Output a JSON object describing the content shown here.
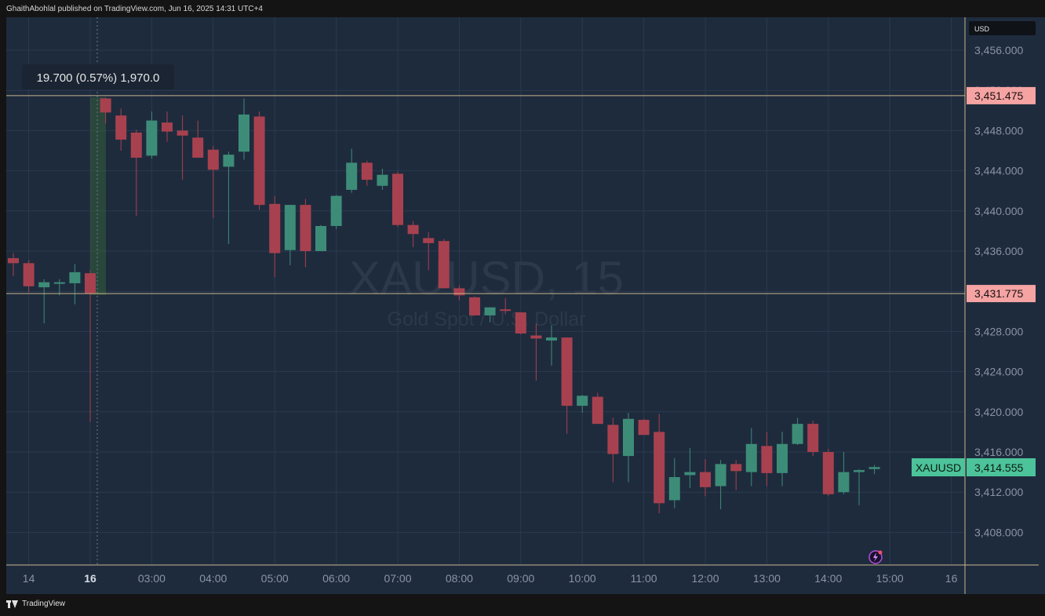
{
  "header": {
    "published_by": "GhaithAbohlal published on TradingView.com, Jun 16, 2025 14:31 UTC+4"
  },
  "footer": {
    "brand": "TradingView"
  },
  "colors": {
    "background": "#1e2b3d",
    "up": "#3d8c78",
    "down": "#a8414f",
    "grid": "#2a3a4f",
    "axis_text": "#8a94a3",
    "level_line": "#c8b38a",
    "level_label_bg": "#f5a3a3",
    "last_price_bg": "#4cc39a"
  },
  "watermark": {
    "symbol": "XAUUSD, 15",
    "description": "Gold Spot / U.S. Dollar"
  },
  "price_axis": {
    "currency": "USD"
  },
  "measure": {
    "label": "19.700 (0.57%) 1,970.0"
  },
  "levels": [
    {
      "price": "3,451.475",
      "value": 3451.475
    },
    {
      "price": "3,431.775",
      "value": 3431.775
    }
  ],
  "last_price": {
    "symbol": "XAUUSD",
    "price": "3,414.555",
    "value": 3414.555
  },
  "icons": {
    "alert": "lightning-alert-icon"
  },
  "chart_data": {
    "type": "candlestick",
    "symbol": "XAUUSD",
    "interval": "15",
    "x_start_index": -6,
    "ylim": [
      3405,
      3458
    ],
    "y_ticks": [
      3408,
      3412,
      3416,
      3420,
      3424,
      3428,
      3432,
      3436,
      3440,
      3444,
      3448,
      3452,
      3456
    ],
    "y_tick_labels": [
      "3,408.000",
      "3,412.000",
      "3,416.000",
      "3,420.000",
      "3,424.000",
      "3,428.000",
      "3,432.000",
      "3,436.000",
      "3,440.000",
      "3,444.000",
      "3,448.000",
      "3,452.000",
      "3,456.000"
    ],
    "x_ticks": [
      {
        "label": "14",
        "index": -5,
        "bold": false
      },
      {
        "label": "16",
        "index": -1,
        "bold": true
      },
      {
        "label": "03:00",
        "index": 3,
        "bold": false
      },
      {
        "label": "04:00",
        "index": 7,
        "bold": false
      },
      {
        "label": "05:00",
        "index": 11,
        "bold": false
      },
      {
        "label": "06:00",
        "index": 15,
        "bold": false
      },
      {
        "label": "07:00",
        "index": 19,
        "bold": false
      },
      {
        "label": "08:00",
        "index": 23,
        "bold": false
      },
      {
        "label": "09:00",
        "index": 27,
        "bold": false
      },
      {
        "label": "10:00",
        "index": 31,
        "bold": false
      },
      {
        "label": "11:00",
        "index": 35,
        "bold": false
      },
      {
        "label": "12:00",
        "index": 39,
        "bold": false
      },
      {
        "label": "13:00",
        "index": 43,
        "bold": false
      },
      {
        "label": "14:00",
        "index": 47,
        "bold": false
      },
      {
        "label": "15:00",
        "index": 51,
        "bold": false
      },
      {
        "label": "16",
        "index": 55,
        "bold": false
      }
    ],
    "candles": [
      {
        "o": 3435.3,
        "h": 3435.8,
        "l": 3433.5,
        "c": 3434.8
      },
      {
        "o": 3434.8,
        "h": 3435.1,
        "l": 3431.9,
        "c": 3432.5
      },
      {
        "o": 3432.4,
        "h": 3433.2,
        "l": 3428.8,
        "c": 3432.9
      },
      {
        "o": 3432.9,
        "h": 3433.2,
        "l": 3431.6,
        "c": 3432.9
      },
      {
        "o": 3432.8,
        "h": 3434.7,
        "l": 3430.7,
        "c": 3433.9
      },
      {
        "o": 3433.8,
        "h": 3434.1,
        "l": 3419.0,
        "c": 3431.8
      },
      {
        "o": 3451.2,
        "h": 3451.3,
        "l": 3448.7,
        "c": 3449.8
      },
      {
        "o": 3449.5,
        "h": 3450.2,
        "l": 3446.0,
        "c": 3447.1
      },
      {
        "o": 3447.8,
        "h": 3448.1,
        "l": 3439.5,
        "c": 3445.3
      },
      {
        "o": 3445.5,
        "h": 3449.9,
        "l": 3445.2,
        "c": 3449.0
      },
      {
        "o": 3448.8,
        "h": 3449.9,
        "l": 3446.9,
        "c": 3447.9
      },
      {
        "o": 3448.0,
        "h": 3449.5,
        "l": 3443.1,
        "c": 3447.5
      },
      {
        "o": 3447.3,
        "h": 3449.0,
        "l": 3445.3,
        "c": 3445.3
      },
      {
        "o": 3446.1,
        "h": 3446.5,
        "l": 3439.3,
        "c": 3444.1
      },
      {
        "o": 3444.4,
        "h": 3445.9,
        "l": 3436.7,
        "c": 3445.6
      },
      {
        "o": 3445.9,
        "h": 3451.2,
        "l": 3445.1,
        "c": 3449.6
      },
      {
        "o": 3449.4,
        "h": 3449.9,
        "l": 3440.1,
        "c": 3440.6
      },
      {
        "o": 3440.7,
        "h": 3441.5,
        "l": 3433.4,
        "c": 3435.8
      },
      {
        "o": 3436.1,
        "h": 3440.2,
        "l": 3434.6,
        "c": 3440.6
      },
      {
        "o": 3440.6,
        "h": 3441.2,
        "l": 3434.4,
        "c": 3436.0
      },
      {
        "o": 3436.0,
        "h": 3438.6,
        "l": 3436.0,
        "c": 3438.5
      },
      {
        "o": 3438.5,
        "h": 3441.6,
        "l": 3438.2,
        "c": 3441.5
      },
      {
        "o": 3442.1,
        "h": 3446.2,
        "l": 3441.8,
        "c": 3444.8
      },
      {
        "o": 3444.8,
        "h": 3445.0,
        "l": 3442.5,
        "c": 3443.1
      },
      {
        "o": 3442.5,
        "h": 3444.2,
        "l": 3442.1,
        "c": 3443.6
      },
      {
        "o": 3443.7,
        "h": 3443.9,
        "l": 3438.4,
        "c": 3438.6
      },
      {
        "o": 3438.6,
        "h": 3439.0,
        "l": 3436.4,
        "c": 3437.7
      },
      {
        "o": 3437.3,
        "h": 3437.9,
        "l": 3434.1,
        "c": 3436.8
      },
      {
        "o": 3437.0,
        "h": 3437.2,
        "l": 3432.3,
        "c": 3432.3
      },
      {
        "o": 3432.3,
        "h": 3432.6,
        "l": 3431.1,
        "c": 3431.6
      },
      {
        "o": 3431.4,
        "h": 3431.5,
        "l": 3429.6,
        "c": 3429.6
      },
      {
        "o": 3429.6,
        "h": 3430.4,
        "l": 3428.9,
        "c": 3430.4
      },
      {
        "o": 3430.2,
        "h": 3431.3,
        "l": 3429.7,
        "c": 3430.1
      },
      {
        "o": 3429.9,
        "h": 3429.9,
        "l": 3427.7,
        "c": 3427.8
      },
      {
        "o": 3427.6,
        "h": 3428.8,
        "l": 3423.1,
        "c": 3427.3
      },
      {
        "o": 3427.1,
        "h": 3428.6,
        "l": 3424.6,
        "c": 3427.4
      },
      {
        "o": 3427.4,
        "h": 3427.4,
        "l": 3417.8,
        "c": 3420.6
      },
      {
        "o": 3420.6,
        "h": 3421.7,
        "l": 3419.9,
        "c": 3421.6
      },
      {
        "o": 3421.5,
        "h": 3421.9,
        "l": 3418.9,
        "c": 3418.8
      },
      {
        "o": 3418.7,
        "h": 3419.4,
        "l": 3413.0,
        "c": 3415.8
      },
      {
        "o": 3415.6,
        "h": 3419.9,
        "l": 3413.0,
        "c": 3419.3
      },
      {
        "o": 3419.2,
        "h": 3419.3,
        "l": 3417.7,
        "c": 3417.7
      },
      {
        "o": 3418.0,
        "h": 3419.8,
        "l": 3409.9,
        "c": 3410.9
      },
      {
        "o": 3411.2,
        "h": 3415.4,
        "l": 3410.4,
        "c": 3413.5
      },
      {
        "o": 3413.7,
        "h": 3416.4,
        "l": 3412.4,
        "c": 3414.0
      },
      {
        "o": 3414.0,
        "h": 3415.3,
        "l": 3411.6,
        "c": 3412.5
      },
      {
        "o": 3412.6,
        "h": 3415.2,
        "l": 3410.3,
        "c": 3414.8
      },
      {
        "o": 3414.8,
        "h": 3415.2,
        "l": 3412.2,
        "c": 3414.1
      },
      {
        "o": 3414.0,
        "h": 3418.4,
        "l": 3412.6,
        "c": 3416.8
      },
      {
        "o": 3416.6,
        "h": 3418.0,
        "l": 3412.6,
        "c": 3413.9
      },
      {
        "o": 3413.9,
        "h": 3418.0,
        "l": 3412.6,
        "c": 3416.8
      },
      {
        "o": 3416.8,
        "h": 3419.4,
        "l": 3416.7,
        "c": 3418.8
      },
      {
        "o": 3418.8,
        "h": 3419.1,
        "l": 3415.6,
        "c": 3416.0
      },
      {
        "o": 3416.0,
        "h": 3416.3,
        "l": 3411.6,
        "c": 3411.8
      },
      {
        "o": 3412.0,
        "h": 3416.0,
        "l": 3411.8,
        "c": 3414.0
      },
      {
        "o": 3414.0,
        "h": 3414.3,
        "l": 3410.7,
        "c": 3414.2
      },
      {
        "o": 3414.3,
        "h": 3414.7,
        "l": 3413.8,
        "c": 3414.5
      }
    ]
  }
}
